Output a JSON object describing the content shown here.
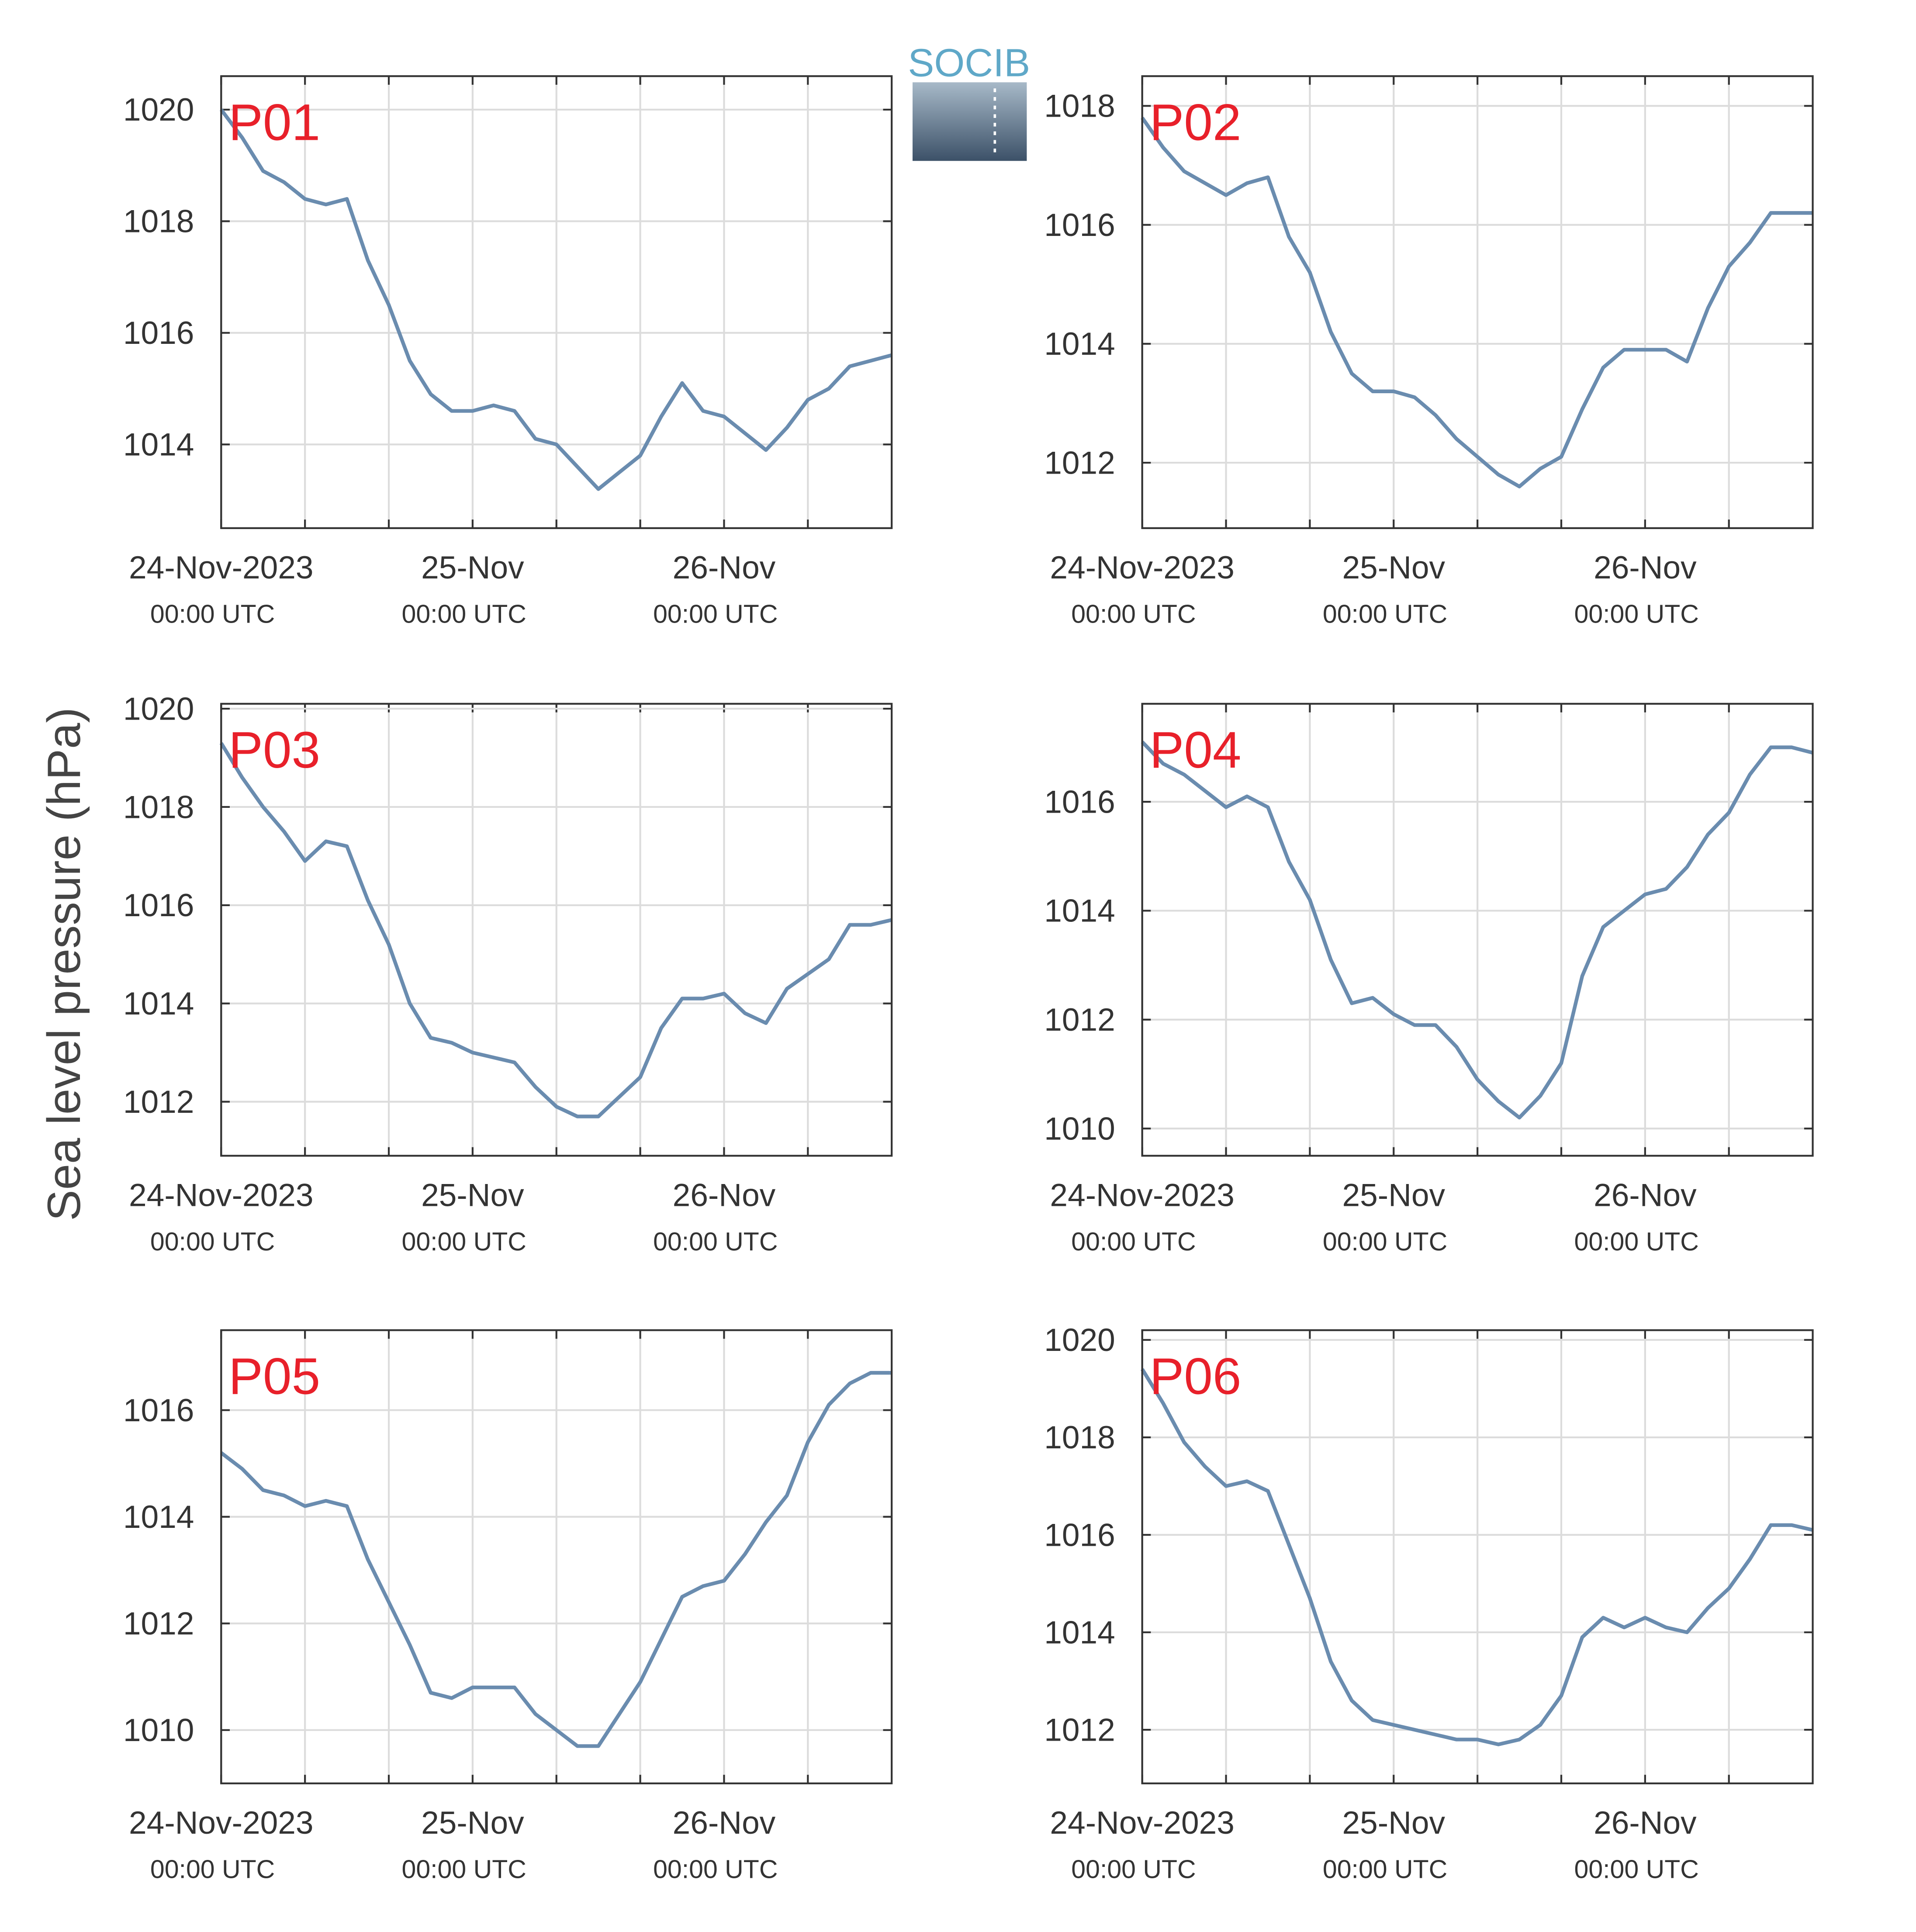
{
  "ylabel": "Sea level pressure (hPa)",
  "logo": "SOCIB",
  "chart_data": [
    {
      "type": "line",
      "title": "P01",
      "color": "#6a8caf",
      "grid": true,
      "x": [
        0,
        2,
        4,
        6,
        8,
        10,
        12,
        14,
        16,
        18,
        20,
        22,
        24,
        26,
        28,
        30,
        32,
        34,
        36,
        38,
        40,
        42,
        44,
        46,
        48,
        50,
        52,
        54,
        56,
        58,
        60,
        62,
        64
      ],
      "values": [
        1020,
        1019.5,
        1018.9,
        1018.7,
        1018.4,
        1018.3,
        1018.4,
        1017.3,
        1016.5,
        1015.5,
        1014.9,
        1014.6,
        1014.6,
        1014.7,
        1014.6,
        1014.1,
        1014.0,
        1013.6,
        1013.2,
        1013.5,
        1013.8,
        1014.5,
        1015.1,
        1014.6,
        1014.5,
        1014.2,
        1013.9,
        1014.3,
        1014.8,
        1015.0,
        1015.4,
        1015.5,
        1015.6
      ],
      "xlim": [
        0,
        64
      ],
      "ylim": [
        1012.5,
        1020.6
      ],
      "yticks": [
        1014,
        1016,
        1018,
        1020
      ],
      "xticks": [
        {
          "value": 0,
          "label": "24-Nov-2023",
          "time": "00:00 UTC"
        },
        {
          "value": 24,
          "label": "25-Nov",
          "time": "00:00 UTC"
        },
        {
          "value": 48,
          "label": "26-Nov",
          "time": "00:00 UTC"
        }
      ],
      "xminor": [
        8,
        16,
        32,
        40,
        56
      ]
    },
    {
      "type": "line",
      "title": "P02",
      "color": "#6a8caf",
      "grid": true,
      "x": [
        0,
        2,
        4,
        6,
        8,
        10,
        12,
        14,
        16,
        18,
        20,
        22,
        24,
        26,
        28,
        30,
        32,
        34,
        36,
        38,
        40,
        42,
        44,
        46,
        48,
        50,
        52,
        54,
        56,
        58,
        60,
        62,
        64
      ],
      "values": [
        1017.8,
        1017.3,
        1016.9,
        1016.7,
        1016.5,
        1016.7,
        1016.8,
        1015.8,
        1015.2,
        1014.2,
        1013.5,
        1013.2,
        1013.2,
        1013.1,
        1012.8,
        1012.4,
        1012.1,
        1011.8,
        1011.6,
        1011.9,
        1012.1,
        1012.9,
        1013.6,
        1013.9,
        1013.9,
        1013.9,
        1013.7,
        1014.6,
        1015.3,
        1015.7,
        1016.2,
        1016.2,
        1016.2
      ],
      "xlim": [
        0,
        64
      ],
      "ylim": [
        1010.9,
        1018.5
      ],
      "yticks": [
        1012,
        1014,
        1016,
        1018
      ],
      "xticks": [
        {
          "value": 0,
          "label": "24-Nov-2023",
          "time": "00:00 UTC"
        },
        {
          "value": 24,
          "label": "25-Nov",
          "time": "00:00 UTC"
        },
        {
          "value": 48,
          "label": "26-Nov",
          "time": "00:00 UTC"
        }
      ],
      "xminor": [
        8,
        16,
        32,
        40,
        56
      ]
    },
    {
      "type": "line",
      "title": "P03",
      "color": "#6a8caf",
      "grid": true,
      "x": [
        0,
        2,
        4,
        6,
        8,
        10,
        12,
        14,
        16,
        18,
        20,
        22,
        24,
        26,
        28,
        30,
        32,
        34,
        36,
        38,
        40,
        42,
        44,
        46,
        48,
        50,
        52,
        54,
        56,
        58,
        60,
        62,
        64
      ],
      "values": [
        1019.3,
        1018.6,
        1018.0,
        1017.5,
        1016.9,
        1017.3,
        1017.2,
        1016.1,
        1015.2,
        1014.0,
        1013.3,
        1013.2,
        1013.0,
        1012.9,
        1012.8,
        1012.3,
        1011.9,
        1011.7,
        1011.7,
        1012.1,
        1012.5,
        1013.5,
        1014.1,
        1014.1,
        1014.2,
        1013.8,
        1013.6,
        1014.3,
        1014.6,
        1014.9,
        1015.6,
        1015.6,
        1015.7
      ],
      "xlim": [
        0,
        64
      ],
      "ylim": [
        1010.9,
        1020.1
      ],
      "yticks": [
        1012,
        1014,
        1016,
        1018,
        1020
      ],
      "xticks": [
        {
          "value": 0,
          "label": "24-Nov-2023",
          "time": "00:00 UTC"
        },
        {
          "value": 24,
          "label": "25-Nov",
          "time": "00:00 UTC"
        },
        {
          "value": 48,
          "label": "26-Nov",
          "time": "00:00 UTC"
        }
      ],
      "xminor": [
        8,
        16,
        32,
        40,
        56
      ]
    },
    {
      "type": "line",
      "title": "P04",
      "color": "#6a8caf",
      "grid": true,
      "x": [
        0,
        2,
        4,
        6,
        8,
        10,
        12,
        14,
        16,
        18,
        20,
        22,
        24,
        26,
        28,
        30,
        32,
        34,
        36,
        38,
        40,
        42,
        44,
        46,
        48,
        50,
        52,
        54,
        56,
        58,
        60,
        62,
        64
      ],
      "values": [
        1017.1,
        1016.7,
        1016.5,
        1016.2,
        1015.9,
        1016.1,
        1015.9,
        1014.9,
        1014.2,
        1013.1,
        1012.3,
        1012.4,
        1012.1,
        1011.9,
        1011.9,
        1011.5,
        1010.9,
        1010.5,
        1010.2,
        1010.6,
        1011.2,
        1012.8,
        1013.7,
        1014.0,
        1014.3,
        1014.4,
        1014.8,
        1015.4,
        1015.8,
        1016.5,
        1017.0,
        1017.0,
        1016.9
      ],
      "xlim": [
        0,
        64
      ],
      "ylim": [
        1009.5,
        1017.8
      ],
      "yticks": [
        1010,
        1012,
        1014,
        1016
      ],
      "xticks": [
        {
          "value": 0,
          "label": "24-Nov-2023",
          "time": "00:00 UTC"
        },
        {
          "value": 24,
          "label": "25-Nov",
          "time": "00:00 UTC"
        },
        {
          "value": 48,
          "label": "26-Nov",
          "time": "00:00 UTC"
        }
      ],
      "xminor": [
        8,
        16,
        32,
        40,
        56
      ]
    },
    {
      "type": "line",
      "title": "P05",
      "color": "#6a8caf",
      "grid": true,
      "x": [
        0,
        2,
        4,
        6,
        8,
        10,
        12,
        14,
        16,
        18,
        20,
        22,
        24,
        26,
        28,
        30,
        32,
        34,
        36,
        38,
        40,
        42,
        44,
        46,
        48,
        50,
        52,
        54,
        56,
        58,
        60,
        62,
        64
      ],
      "values": [
        1015.2,
        1014.9,
        1014.5,
        1014.4,
        1014.2,
        1014.3,
        1014.2,
        1013.2,
        1012.4,
        1011.6,
        1010.7,
        1010.6,
        1010.8,
        1010.8,
        1010.8,
        1010.3,
        1010.0,
        1009.7,
        1009.7,
        1010.3,
        1010.9,
        1011.7,
        1012.5,
        1012.7,
        1012.8,
        1013.3,
        1013.9,
        1014.4,
        1015.4,
        1016.1,
        1016.5,
        1016.7,
        1016.7
      ],
      "xlim": [
        0,
        64
      ],
      "ylim": [
        1009.0,
        1017.5
      ],
      "yticks": [
        1010,
        1012,
        1014,
        1016
      ],
      "xticks": [
        {
          "value": 0,
          "label": "24-Nov-2023",
          "time": "00:00 UTC"
        },
        {
          "value": 24,
          "label": "25-Nov",
          "time": "00:00 UTC"
        },
        {
          "value": 48,
          "label": "26-Nov",
          "time": "00:00 UTC"
        }
      ],
      "xminor": [
        8,
        16,
        32,
        40,
        56
      ]
    },
    {
      "type": "line",
      "title": "P06",
      "color": "#6a8caf",
      "grid": true,
      "x": [
        0,
        2,
        4,
        6,
        8,
        10,
        12,
        14,
        16,
        18,
        20,
        22,
        24,
        26,
        28,
        30,
        32,
        34,
        36,
        38,
        40,
        42,
        44,
        46,
        48,
        50,
        52,
        54,
        56,
        58,
        60,
        62,
        64
      ],
      "values": [
        1019.4,
        1018.7,
        1017.9,
        1017.4,
        1017.0,
        1017.1,
        1016.9,
        1015.8,
        1014.7,
        1013.4,
        1012.6,
        1012.2,
        1012.1,
        1012.0,
        1011.9,
        1011.8,
        1011.8,
        1011.7,
        1011.8,
        1012.1,
        1012.7,
        1013.9,
        1014.3,
        1014.1,
        1014.3,
        1014.1,
        1014.0,
        1014.5,
        1014.9,
        1015.5,
        1016.2,
        1016.2,
        1016.1
      ],
      "xlim": [
        0,
        64
      ],
      "ylim": [
        1010.9,
        1020.2
      ],
      "yticks": [
        1012,
        1014,
        1016,
        1018,
        1020
      ],
      "xticks": [
        {
          "value": 0,
          "label": "24-Nov-2023",
          "time": "00:00 UTC"
        },
        {
          "value": 24,
          "label": "25-Nov",
          "time": "00:00 UTC"
        },
        {
          "value": 48,
          "label": "26-Nov",
          "time": "00:00 UTC"
        }
      ],
      "xminor": [
        8,
        16,
        32,
        40,
        56
      ]
    }
  ]
}
